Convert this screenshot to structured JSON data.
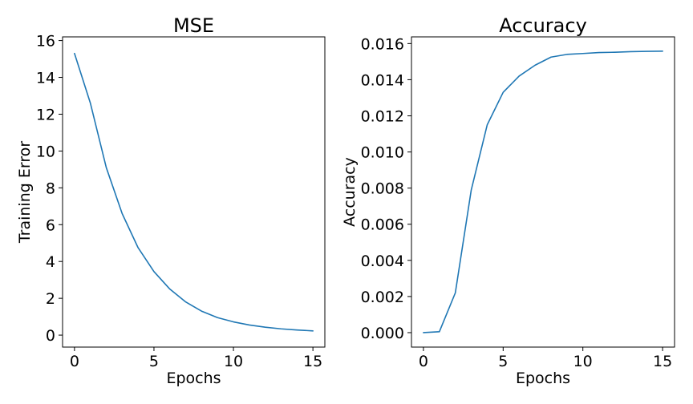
{
  "chart_data": [
    {
      "type": "line",
      "title": "MSE",
      "xlabel": "Epochs",
      "ylabel": "Training Error",
      "xlim": [
        -0.75,
        15.75
      ],
      "ylim": [
        -0.65,
        16.2
      ],
      "xticks": [
        0,
        5,
        10,
        15
      ],
      "yticks": [
        0,
        2,
        4,
        6,
        8,
        10,
        12,
        14,
        16
      ],
      "ytick_labels": [
        "0",
        "2",
        "4",
        "6",
        "8",
        "10",
        "12",
        "14",
        "16"
      ],
      "grid": false,
      "color": "#1f77b4",
      "series": [
        {
          "x": [
            0,
            1,
            2,
            3,
            4,
            5,
            6,
            7,
            8,
            9,
            10,
            11,
            12,
            13,
            14,
            15
          ],
          "values": [
            15.3,
            12.6,
            9.1,
            6.6,
            4.75,
            3.45,
            2.5,
            1.8,
            1.3,
            0.95,
            0.72,
            0.55,
            0.43,
            0.34,
            0.28,
            0.23
          ]
        }
      ]
    },
    {
      "type": "line",
      "title": "Accuracy",
      "xlabel": "Epochs",
      "ylabel": "Accuracy",
      "xlim": [
        -0.75,
        15.75
      ],
      "ylim": [
        -0.0008,
        0.01637
      ],
      "xticks": [
        0,
        5,
        10,
        15
      ],
      "yticks": [
        0,
        0.002,
        0.004,
        0.006,
        0.008,
        0.01,
        0.012,
        0.014,
        0.016
      ],
      "ytick_labels": [
        "0.000",
        "0.002",
        "0.004",
        "0.006",
        "0.008",
        "0.010",
        "0.012",
        "0.014",
        "0.016"
      ],
      "grid": false,
      "color": "#1f77b4",
      "series": [
        {
          "x": [
            0,
            1,
            2,
            3,
            4,
            5,
            6,
            7,
            8,
            9,
            10,
            11,
            12,
            13,
            14,
            15
          ],
          "values": [
            0.0,
            5e-05,
            0.0022,
            0.0079,
            0.0115,
            0.0133,
            0.0142,
            0.0148,
            0.01525,
            0.0154,
            0.01545,
            0.0155,
            0.01552,
            0.01555,
            0.01557,
            0.01558
          ]
        }
      ]
    }
  ]
}
